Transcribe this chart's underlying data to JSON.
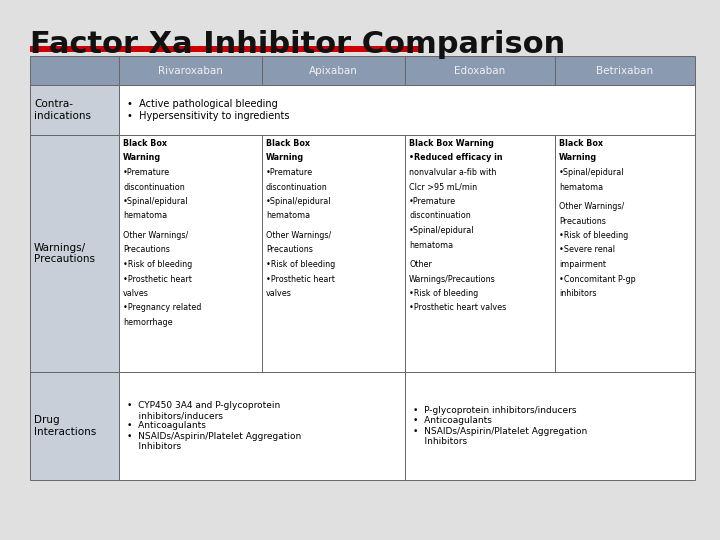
{
  "title": "Factor Xa Inhibitor Comparison",
  "title_fontsize": 22,
  "background_color": "#e0e0e0",
  "header_bg": "#8a9ab0",
  "header_text_color": "#f0f0f0",
  "cell_bg_light": "#c8cfd8",
  "cell_bg_white": "#ffffff",
  "red_line_color": "#cc0000",
  "columns": [
    "Rivaroxaban",
    "Apixaban",
    "Edoxaban",
    "Betrixaban"
  ],
  "contraindications_span": "•  Active pathological bleeding\n•  Hypersensitivity to ingredients",
  "warnings_rivaroxaban": "Black Box\nWarning\n•Premature\ndiscontinuation\n•Spinal/epidural\nhematoma\n\nOther Warnings/\nPrecautions\n•Risk of bleeding\n•Prosthetic heart\nvalves\n•Pregnancy related\nhemorrhage",
  "warnings_apixaban": "Black Box\nWarning\n•Premature\ndiscontinuation\n•Spinal/epidural\nhematoma\n\nOther Warnings/\nPrecautions\n•Risk of bleeding\n•Prosthetic heart\nvalves",
  "warnings_edoxaban": "Black Box Warning\n•Reduced efficacy in\nnonvalvular a-fib with\nClcr >95 mL/min\n•Premature\ndiscontinuation\n•Spinal/epidural\nhematoma\n\nOther\nWarnings/Precautions\n•Risk of bleeding\n•Prosthetic heart valves",
  "warnings_betrixaban": "Black Box\nWarning\n•Spinal/epidural\nhematoma\n\nOther Warnings/\nPrecautions\n•Risk of bleeding\n•Severe renal\nimpairment\n•Concomitant P-gp\ninhibitors",
  "drug_riv_api": "•  CYP450 3A4 and P-glycoprotein\n    inhibitors/inducers\n•  Anticoagulants\n•  NSAIDs/Aspirin/Platelet Aggregation\n    Inhibitors",
  "drug_edo_bet": "•  P-glycoprotein inhibitors/inducers\n•  Anticoagulants\n•  NSAIDs/Aspirin/Platelet Aggregation\n    Inhibitors"
}
